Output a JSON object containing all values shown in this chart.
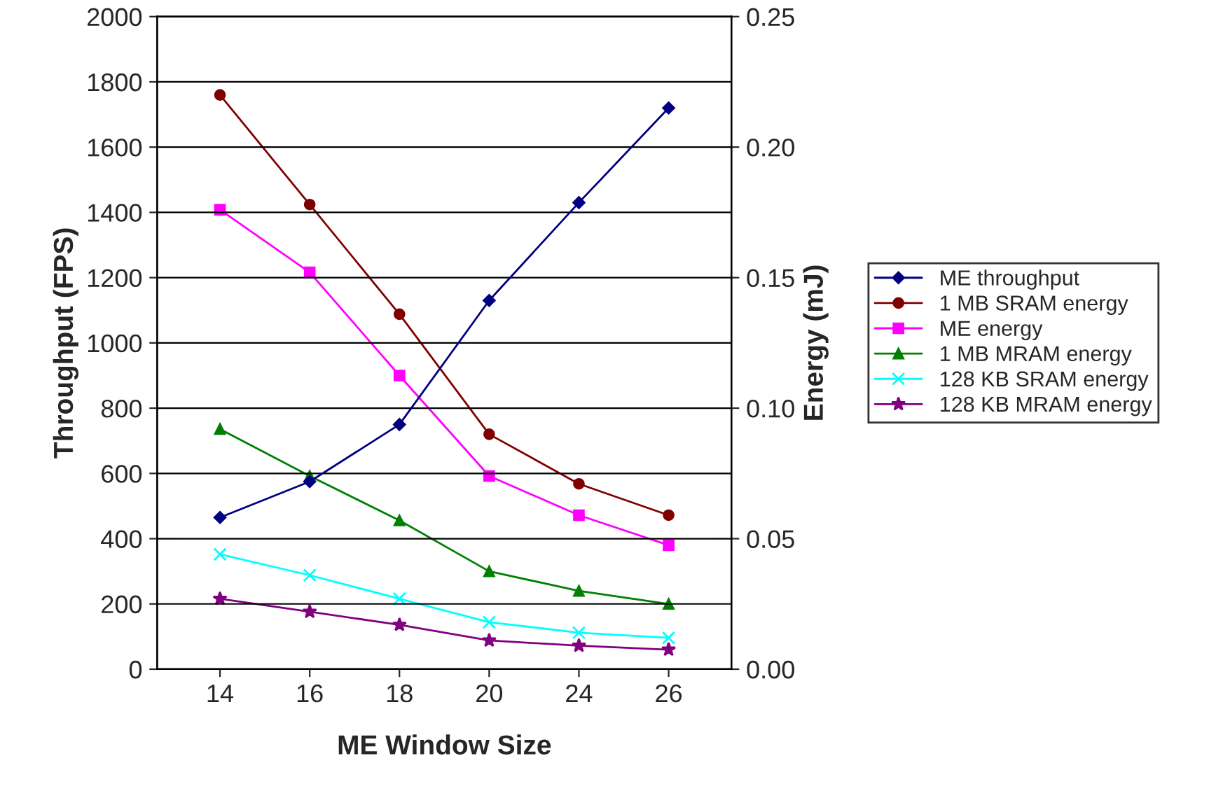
{
  "chart_data": {
    "type": "line",
    "xlabel": "ME Window Size",
    "ylabel": "Throughput (FPS)",
    "y2label": "Energy (mJ)",
    "categories": [
      "14",
      "16",
      "18",
      "20",
      "24",
      "26"
    ],
    "series": [
      {
        "name": "ME throughput",
        "color": "#000080",
        "marker": "diamond",
        "values": [
          465,
          575,
          750,
          1130,
          1430,
          1720
        ]
      },
      {
        "name": "1 MB SRAM energy",
        "color": "#800000",
        "marker": "circle",
        "axis": "y2",
        "values": [
          0.22,
          0.178,
          0.136,
          0.09,
          0.071,
          0.059
        ]
      },
      {
        "name": "ME energy",
        "color": "#ff00ff",
        "marker": "square",
        "axis": "y2",
        "values": [
          0.176,
          0.152,
          0.1125,
          0.074,
          0.059,
          0.0475
        ]
      },
      {
        "name": "1 MB MRAM energy",
        "color": "#008000",
        "marker": "triangle",
        "axis": "y2",
        "values": [
          0.092,
          0.074,
          0.057,
          0.0375,
          0.03,
          0.025
        ]
      },
      {
        "name": "128 KB SRAM energy",
        "color": "#00ffff",
        "marker": "cross",
        "axis": "y2",
        "values": [
          0.044,
          0.036,
          0.027,
          0.018,
          0.014,
          0.012
        ]
      },
      {
        "name": "128 KB MRAM energy",
        "color": "#800080",
        "marker": "star",
        "axis": "y2",
        "values": [
          0.027,
          0.022,
          0.017,
          0.011,
          0.009,
          0.0075
        ]
      }
    ],
    "ylim": [
      0,
      2000
    ],
    "yticks": [
      0,
      200,
      400,
      600,
      800,
      1000,
      1200,
      1400,
      1600,
      1800,
      2000
    ],
    "y2lim": [
      0,
      0.25
    ],
    "y2ticks": [
      {
        "value": 0,
        "label": "0.00"
      },
      {
        "value": 0.05,
        "label": "0.05"
      },
      {
        "value": 0.1,
        "label": "0.10"
      },
      {
        "value": 0.15,
        "label": "0.15"
      },
      {
        "value": 0.2,
        "label": "0.20"
      },
      {
        "value": 0.25,
        "label": "0.25"
      }
    ],
    "grid": "y",
    "legend": "right",
    "line_style": "solid"
  }
}
